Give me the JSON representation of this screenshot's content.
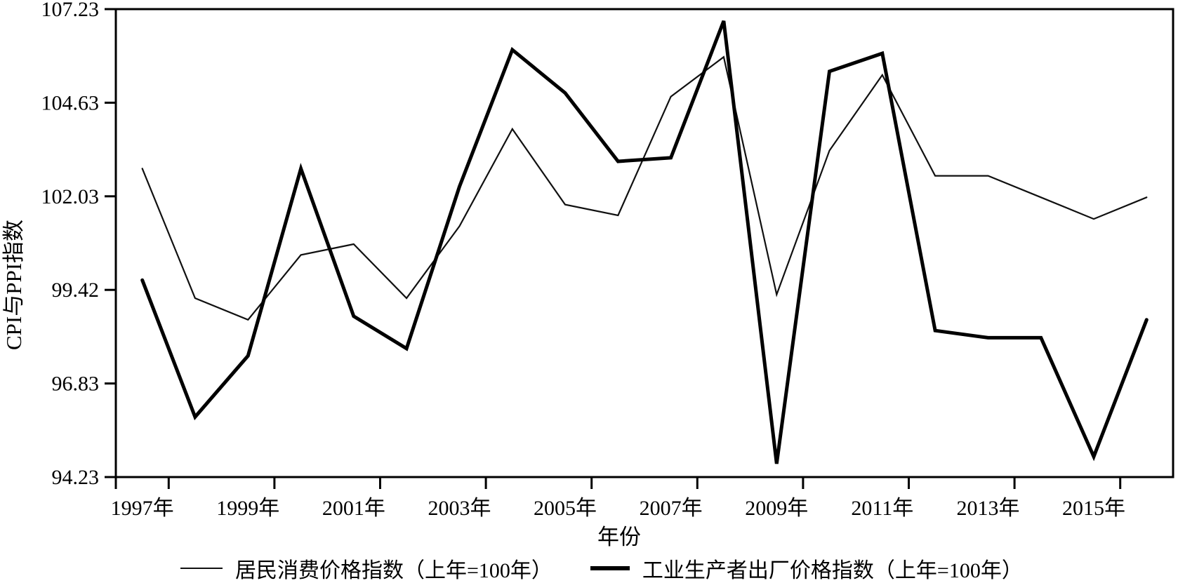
{
  "page": {
    "background": "#ffffff",
    "ink_color": "#000000"
  },
  "chart_data": {
    "type": "line",
    "title": "",
    "xlabel": "年份",
    "ylabel": "CPI与PPI指数",
    "years": [
      1997,
      1998,
      1999,
      2000,
      2001,
      2002,
      2003,
      2004,
      2005,
      2006,
      2007,
      2008,
      2009,
      2010,
      2011,
      2012,
      2013,
      2014,
      2015,
      2016
    ],
    "x_tick_labels": [
      "1997年",
      "1999年",
      "2001年",
      "2003年",
      "2005年",
      "2007年",
      "2009年",
      "2011年",
      "2013年",
      "2015年"
    ],
    "y_tick_labels": [
      "94.23",
      "96.83",
      "99.42",
      "102.03",
      "104.63",
      "107.23"
    ],
    "ylim": [
      94.23,
      107.23
    ],
    "grid": false,
    "legend_position": "bottom",
    "series": [
      {
        "name": "居民消费价格指数（上年=100年）",
        "line_weight": "thin",
        "color": "#101010",
        "values": [
          102.8,
          99.2,
          98.6,
          100.4,
          100.7,
          99.2,
          101.2,
          103.9,
          101.8,
          101.5,
          104.8,
          105.9,
          99.3,
          103.3,
          105.4,
          102.6,
          102.6,
          102.0,
          101.4,
          102.0
        ]
      },
      {
        "name": "工业生产者出厂价格指数（上年=100年）",
        "line_weight": "thick",
        "color": "#000000",
        "values": [
          99.7,
          95.9,
          97.6,
          102.8,
          98.7,
          97.8,
          102.3,
          106.1,
          104.9,
          103.0,
          103.1,
          106.9,
          94.6,
          105.5,
          106.0,
          98.3,
          98.1,
          98.1,
          94.8,
          98.6
        ]
      }
    ]
  }
}
